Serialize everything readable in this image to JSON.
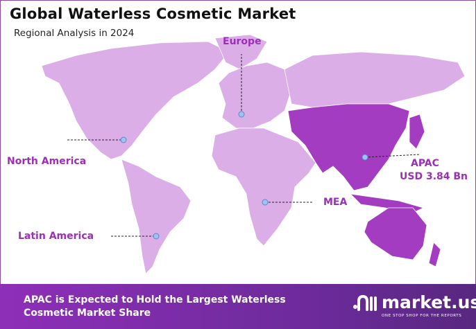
{
  "title": "Global Waterless Cosmetic Market",
  "subtitle": "Regional Analysis in 2024",
  "regions": {
    "europe": "Europe",
    "north_america": "North America",
    "latin_america": "Latin America",
    "mea": "MEA",
    "apac": "APAC",
    "apac_value": "USD 3.84 Bn"
  },
  "highlighted_region": "APAC",
  "colors": {
    "base_land": "#dcaee8",
    "highlight_land": "#a33cc0",
    "label": "#9b2fb6",
    "banner": "#8e2fb8"
  },
  "banner": {
    "line1": "APAC is Expected to Hold the Largest Waterless",
    "line2": "Cosmetic Market Share"
  },
  "logo": {
    "name": "market.us",
    "tagline": "ONE STOP SHOP FOR THE REPORTS"
  }
}
